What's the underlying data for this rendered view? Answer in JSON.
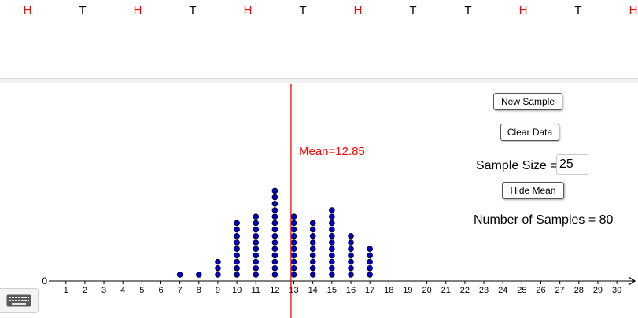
{
  "coin_flips": {
    "visible": [
      "H",
      "T",
      "H",
      "T",
      "H",
      "T",
      "H",
      "T",
      "T",
      "H",
      "T",
      "H"
    ],
    "colors": {
      "H": "#ff0000",
      "T": "#000000"
    }
  },
  "buttons": {
    "new_sample": "New Sample",
    "clear_data": "Clear Data",
    "hide_mean": "Hide Mean"
  },
  "sample_size": {
    "label": "Sample Size =",
    "value": "25"
  },
  "number_of_samples": "Number of Samples = 80",
  "mean": {
    "label": "Mean=12.85",
    "value": 12.85,
    "color": "#ff0000"
  },
  "chart_data": {
    "type": "dot plot",
    "x_ticks": [
      1,
      2,
      3,
      4,
      5,
      6,
      7,
      8,
      9,
      10,
      11,
      12,
      13,
      14,
      15,
      16,
      17,
      18,
      19,
      20,
      21,
      22,
      23,
      24,
      25,
      26,
      27,
      28,
      29,
      30
    ],
    "y_origin_label": "0",
    "counts": [
      {
        "x": 7,
        "count": 1
      },
      {
        "x": 8,
        "count": 1
      },
      {
        "x": 9,
        "count": 3
      },
      {
        "x": 10,
        "count": 9
      },
      {
        "x": 11,
        "count": 10
      },
      {
        "x": 12,
        "count": 14
      },
      {
        "x": 13,
        "count": 10
      },
      {
        "x": 14,
        "count": 9
      },
      {
        "x": 15,
        "count": 11
      },
      {
        "x": 16,
        "count": 7
      },
      {
        "x": 17,
        "count": 5
      }
    ],
    "dot_color": "#0000cc",
    "mean_line": 12.85
  },
  "icons": {
    "keyboard": "keyboard-icon"
  }
}
